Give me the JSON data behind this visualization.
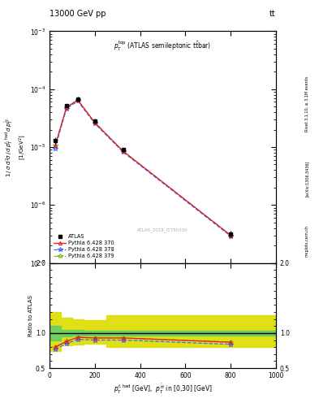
{
  "title_top": "13000 GeV pp",
  "title_right": "tt",
  "watermark": "ATLAS_2019_I1750330",
  "xlim": [
    0,
    1000
  ],
  "ylim_main": [
    1e-07,
    0.001
  ],
  "ylim_ratio": [
    0.5,
    2.0
  ],
  "atlas_x": [
    25,
    75,
    125,
    200,
    325,
    800
  ],
  "atlas_y": [
    1.3e-05,
    5.2e-05,
    6.8e-05,
    2.8e-05,
    9e-06,
    3.2e-07
  ],
  "atlas_yerr_lo": [
    1.5e-06,
    4e-06,
    5e-06,
    2.5e-06,
    8e-07,
    4e-08
  ],
  "atlas_yerr_hi": [
    1.5e-06,
    4e-06,
    5e-06,
    2.5e-06,
    8e-07,
    4e-08
  ],
  "py370_x": [
    25,
    75,
    125,
    200,
    325,
    800
  ],
  "py370_y": [
    1.05e-05,
    4.8e-05,
    6.5e-05,
    2.65e-05,
    8.5e-06,
    3e-07
  ],
  "py378_x": [
    25,
    75,
    125,
    200,
    325,
    800
  ],
  "py378_y": [
    9.5e-06,
    4.6e-05,
    6.2e-05,
    2.55e-05,
    8.2e-06,
    2.9e-07
  ],
  "py379_x": [
    25,
    75,
    125,
    200,
    325,
    800
  ],
  "py379_y": [
    1.05e-05,
    4.9e-05,
    6.5e-05,
    2.65e-05,
    8.5e-06,
    3e-07
  ],
  "ratio_band_x": [
    0,
    50,
    100,
    150,
    250,
    450,
    1000
  ],
  "ratio_band_green_lo": [
    0.9,
    0.95,
    0.96,
    0.97,
    0.97,
    0.97,
    0.97
  ],
  "ratio_band_green_hi": [
    1.1,
    1.05,
    1.04,
    1.03,
    1.03,
    1.03,
    1.03
  ],
  "ratio_band_yellow_lo": [
    0.75,
    0.82,
    0.84,
    0.85,
    0.8,
    0.8,
    0.8
  ],
  "ratio_band_yellow_hi": [
    1.3,
    1.22,
    1.2,
    1.18,
    1.25,
    1.25,
    1.25
  ],
  "ratio370_x": [
    25,
    75,
    125,
    200,
    325,
    800
  ],
  "ratio370_y": [
    0.8,
    0.88,
    0.94,
    0.93,
    0.93,
    0.87
  ],
  "ratio378_x": [
    25,
    75,
    125,
    200,
    325,
    800
  ],
  "ratio378_y": [
    0.77,
    0.85,
    0.91,
    0.9,
    0.9,
    0.84
  ],
  "ratio379_x": [
    25,
    75,
    125,
    200,
    325,
    800
  ],
  "ratio379_y": [
    0.8,
    0.89,
    0.94,
    0.93,
    0.93,
    0.87
  ],
  "color_370": "#e8191a",
  "color_378": "#4466ff",
  "color_379": "#88bb22",
  "color_atlas": "#000000",
  "color_green_band": "#66cc66",
  "color_yellow_band": "#dddd00"
}
